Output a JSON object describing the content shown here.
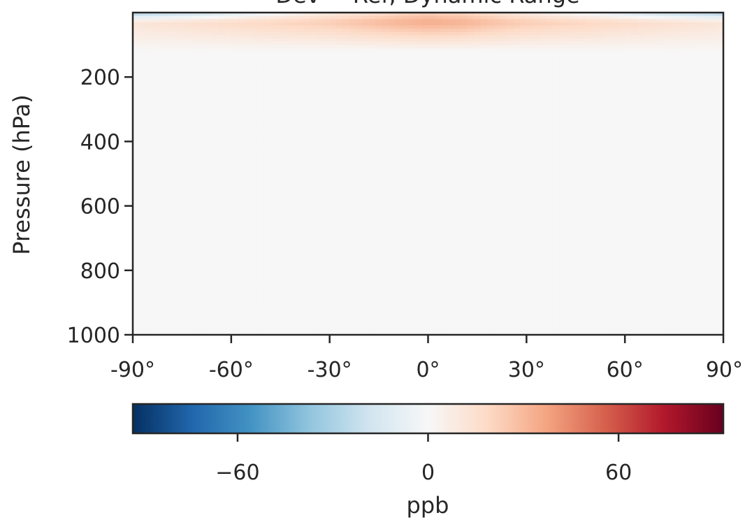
{
  "chart_data": {
    "type": "heatmap",
    "title": "Dev − Ref, Dynamic Range",
    "xlabel": "",
    "ylabel": "Pressure (hPa)",
    "xlim": [
      -90,
      90
    ],
    "ylim": [
      1000,
      0
    ],
    "x_ticks": [
      {
        "value": -90,
        "label": "-90°"
      },
      {
        "value": -60,
        "label": "-60°"
      },
      {
        "value": -30,
        "label": "-30°"
      },
      {
        "value": 0,
        "label": "0°"
      },
      {
        "value": 30,
        "label": "30°"
      },
      {
        "value": 60,
        "label": "60°"
      },
      {
        "value": 90,
        "label": "90°"
      }
    ],
    "y_ticks": [
      {
        "value": 200,
        "label": "200"
      },
      {
        "value": 400,
        "label": "400"
      },
      {
        "value": 600,
        "label": "600"
      },
      {
        "value": 800,
        "label": "800"
      },
      {
        "value": 1000,
        "label": "1000"
      }
    ],
    "colormap": "RdBu_r",
    "colorbar": {
      "label": "ppb",
      "range": [
        -93,
        93
      ],
      "orientation": "horizontal",
      "ticks": [
        {
          "value": -60,
          "label": "−60"
        },
        {
          "value": 0,
          "label": "0"
        },
        {
          "value": 60,
          "label": "60"
        }
      ],
      "colors": [
        "#053061",
        "#2166ac",
        "#4393c3",
        "#92c5de",
        "#d1e5f0",
        "#f7f7f7",
        "#fddbc7",
        "#f4a582",
        "#d6604d",
        "#b2182b",
        "#67001f"
      ]
    },
    "field_description": {
      "lat": [
        -90,
        -80,
        -70,
        -60,
        -50,
        -40,
        -30,
        -20,
        -10,
        0,
        10,
        20,
        30,
        40,
        50,
        60,
        70,
        80,
        90
      ],
      "top_layer_approx_hPa": [
        0,
        30
      ],
      "top_layer_ppb": [
        -30,
        -25,
        -20,
        -12,
        -5,
        2,
        8,
        12,
        18,
        22,
        20,
        14,
        8,
        2,
        -5,
        -12,
        -20,
        -25,
        -30
      ],
      "sub_layer_approx_hPa": [
        30,
        120
      ],
      "sub_layer_ppb": [
        12,
        14,
        16,
        18,
        20,
        22,
        24,
        28,
        32,
        35,
        33,
        28,
        24,
        22,
        20,
        18,
        16,
        14,
        12
      ],
      "background_ppb": 0
    }
  }
}
